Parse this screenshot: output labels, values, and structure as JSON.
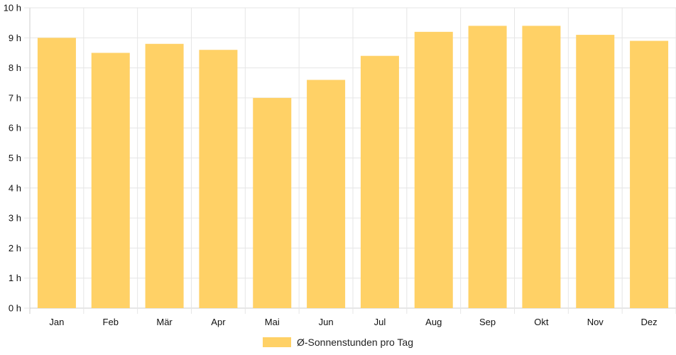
{
  "chart_data": {
    "type": "bar",
    "categories": [
      "Jan",
      "Feb",
      "Mär",
      "Apr",
      "Mai",
      "Jun",
      "Jul",
      "Aug",
      "Sep",
      "Okt",
      "Nov",
      "Dez"
    ],
    "series": [
      {
        "name": "Ø-Sonnenstunden pro Tag",
        "values": [
          9.0,
          8.5,
          8.8,
          8.6,
          7.0,
          7.6,
          8.4,
          9.2,
          9.4,
          9.4,
          9.1,
          8.9
        ],
        "color": "#ffd166"
      }
    ],
    "ylim": [
      0,
      10
    ],
    "yticks": [
      "0 h",
      "1 h",
      "2 h",
      "3 h",
      "4 h",
      "5 h",
      "6 h",
      "7 h",
      "8 h",
      "9 h",
      "10 h"
    ],
    "grid": true,
    "legend": "bottom-center",
    "gridColor": "#e6e6e6",
    "axisColor": "#cccccc"
  }
}
